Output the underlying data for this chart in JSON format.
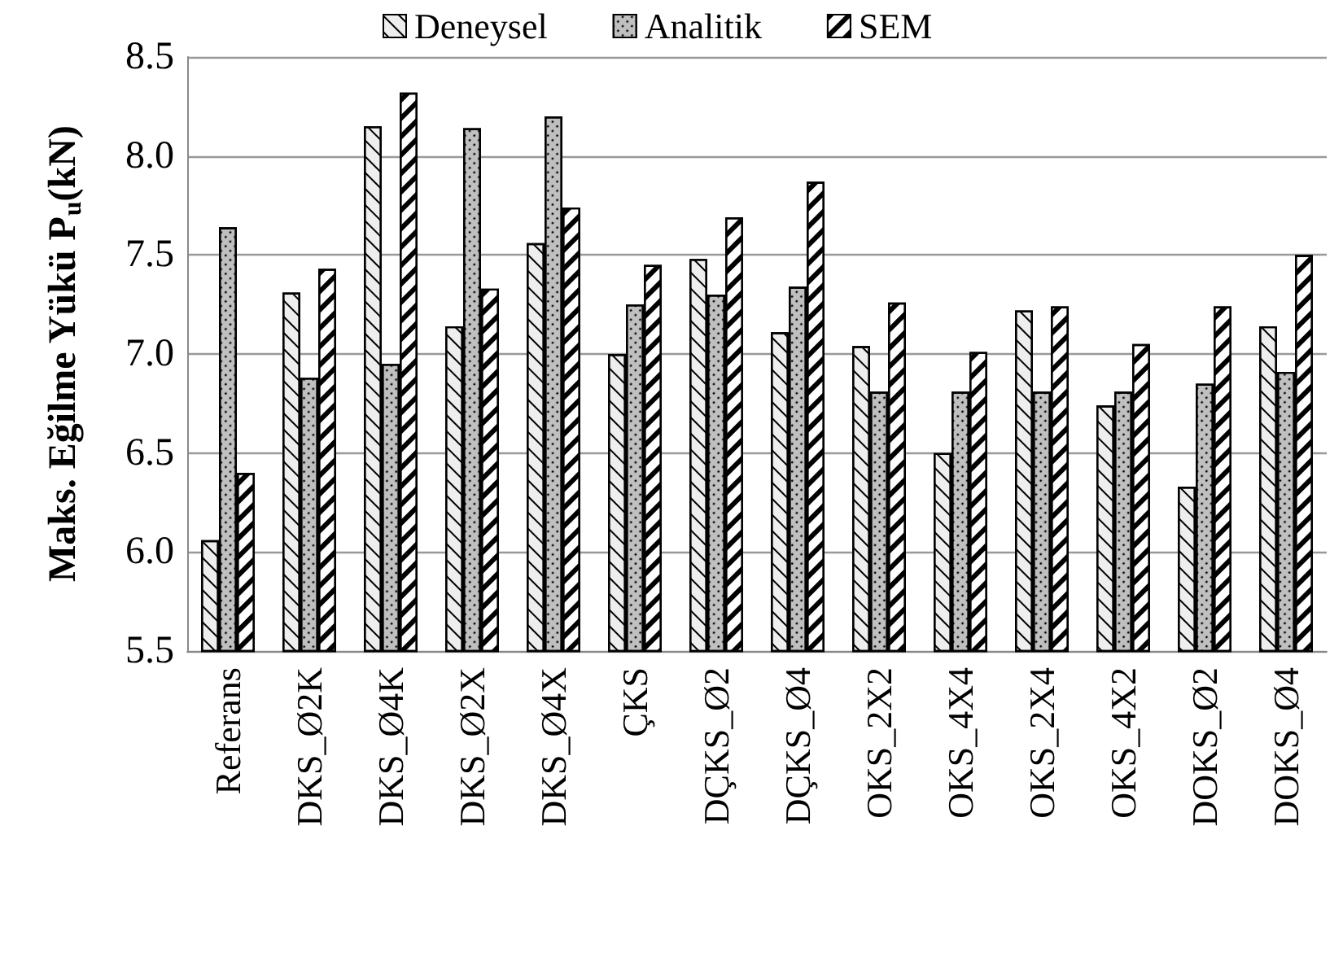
{
  "chart_data": {
    "type": "bar",
    "ylabel": "Maks. Eğilme Yükü P$_{u}$(kN)",
    "categories": [
      "Referans",
      "DKS_Ø2K",
      "DKS_Ø4K",
      "DKS_Ø2X",
      "DKS_Ø4X",
      "ÇKS",
      "DÇKS_Ø2",
      "DÇKS_Ø4",
      "OKS_2X2",
      "OKS_4X4",
      "OKS_2X4",
      "OKS_4X2",
      "DOKS_Ø2",
      "DOKS_Ø4"
    ],
    "series": [
      {
        "name": "Deneysel",
        "color": "#eeeeee",
        "values": [
          6.06,
          7.31,
          8.15,
          7.14,
          7.56,
          7.0,
          7.48,
          7.11,
          7.04,
          6.5,
          7.22,
          6.74,
          6.33,
          7.14
        ]
      },
      {
        "name": "Analitik",
        "color": "#c0c0c0",
        "values": [
          7.64,
          6.88,
          6.95,
          8.14,
          8.2,
          7.25,
          7.3,
          7.34,
          6.81,
          6.81,
          6.81,
          6.81,
          6.85,
          6.91
        ]
      },
      {
        "name": "SEM",
        "color": "#ffffff",
        "values": [
          6.4,
          7.43,
          8.32,
          7.33,
          7.74,
          7.45,
          7.69,
          7.87,
          7.26,
          7.01,
          7.24,
          7.05,
          7.24,
          7.5
        ]
      }
    ],
    "ylim": [
      5.5,
      8.5
    ],
    "yticks": [
      5.5,
      {
        "value": 6,
        "label": "6.0"
      },
      6.5,
      {
        "value": 7,
        "label": "7.0"
      },
      7.5,
      {
        "value": 8,
        "label": "8.0"
      },
      8.5
    ],
    "grid": "y",
    "legend": "top"
  }
}
